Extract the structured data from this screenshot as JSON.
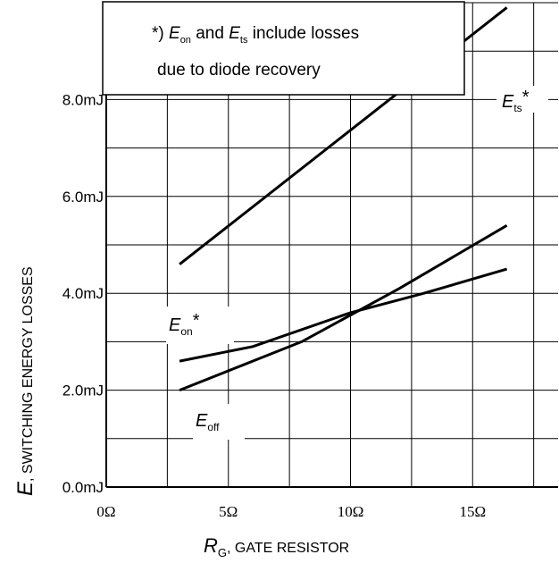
{
  "chart_data": {
    "type": "line",
    "x_axis": {
      "label_var": "R",
      "label_sub": "G",
      "label_text": ", GATE RESISTOR",
      "ticks": [
        "0Ω",
        "5Ω",
        "10Ω",
        "15Ω"
      ],
      "tick_values": [
        0,
        5,
        10,
        15
      ],
      "range": [
        0,
        18.5
      ]
    },
    "y_axis": {
      "label_var": "E",
      "label_text": ", SWITCHING ENERGY LOSSES",
      "ticks": [
        "0.0mJ",
        "2.0mJ",
        "4.0mJ",
        "6.0mJ",
        "8.0mJ"
      ],
      "tick_values": [
        0,
        2,
        4,
        6,
        8
      ],
      "range": [
        0,
        10
      ]
    },
    "grid": true,
    "series": [
      {
        "name_var": "E",
        "name_sub": "ts",
        "name_suffix": "*",
        "points": [
          [
            3,
            4.6
          ],
          [
            16.4,
            9.9
          ]
        ]
      },
      {
        "name_var": "E",
        "name_sub": "on",
        "name_suffix": "*",
        "points": [
          [
            3,
            2.6
          ],
          [
            6,
            2.9
          ],
          [
            10,
            3.6
          ],
          [
            13,
            4.0
          ],
          [
            16.4,
            4.5
          ]
        ]
      },
      {
        "name_var": "E",
        "name_sub": "off",
        "name_suffix": "",
        "points": [
          [
            3,
            2.0
          ],
          [
            8,
            3.0
          ],
          [
            12,
            4.1
          ],
          [
            16.4,
            5.4
          ]
        ]
      }
    ],
    "annotation": {
      "line1_prefix": "*) ",
      "line1_var1": "E",
      "line1_sub1": "on",
      "line1_mid": " and ",
      "line1_var2": "E",
      "line1_sub2": "ts",
      "line1_suffix": " include losses",
      "line2": "due to diode recovery"
    }
  }
}
